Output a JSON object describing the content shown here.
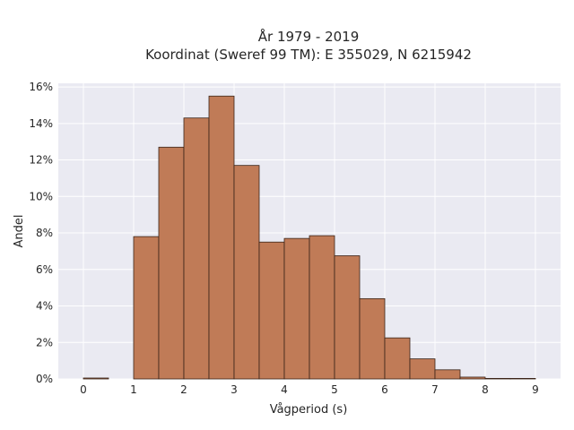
{
  "chart_data": {
    "type": "bar",
    "title_lines": [
      "År 1979 - 2019",
      "Koordinat (Sweref 99 TM): E 355029, N 6215942"
    ],
    "xlabel": "Vågperiod (s)",
    "ylabel": "Andel",
    "x_ticks": [
      "0",
      "1",
      "2",
      "3",
      "4",
      "5",
      "6",
      "7",
      "8",
      "9"
    ],
    "y_ticks": [
      "0%",
      "2%",
      "4%",
      "6%",
      "8%",
      "10%",
      "12%",
      "14%",
      "16%"
    ],
    "xlim": [
      -0.5,
      9.5
    ],
    "ylim": [
      0,
      16.2
    ],
    "bin_width": 0.5,
    "bins": [
      {
        "x_start": 0.0,
        "value": 0.05
      },
      {
        "x_start": 1.0,
        "value": 7.8
      },
      {
        "x_start": 1.5,
        "value": 12.7
      },
      {
        "x_start": 2.0,
        "value": 14.3
      },
      {
        "x_start": 2.5,
        "value": 15.5
      },
      {
        "x_start": 3.0,
        "value": 11.7
      },
      {
        "x_start": 3.5,
        "value": 7.5
      },
      {
        "x_start": 4.0,
        "value": 7.7
      },
      {
        "x_start": 4.5,
        "value": 7.85
      },
      {
        "x_start": 5.0,
        "value": 6.75
      },
      {
        "x_start": 5.5,
        "value": 4.4
      },
      {
        "x_start": 6.0,
        "value": 2.25
      },
      {
        "x_start": 6.5,
        "value": 1.1
      },
      {
        "x_start": 7.0,
        "value": 0.5
      },
      {
        "x_start": 7.5,
        "value": 0.1
      },
      {
        "x_start": 8.0,
        "value": 0.03
      },
      {
        "x_start": 8.5,
        "value": 0.02
      }
    ],
    "grid": true,
    "colors": {
      "bar_fill": "#c07b57",
      "bar_edge": "#3a2418",
      "plot_background": "#eaeaf2",
      "grid": "#ffffff"
    }
  }
}
